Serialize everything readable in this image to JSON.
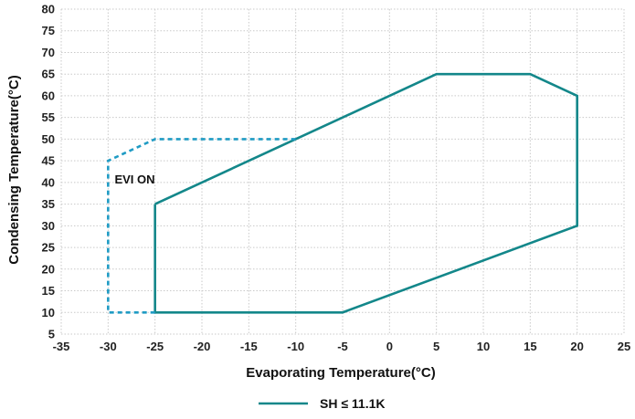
{
  "chart_data": {
    "type": "line",
    "xlabel": "Evaporating Temperature(°C)",
    "ylabel": "Condensing Temperature(°C)",
    "xlim": [
      -35,
      25
    ],
    "ylim": [
      5,
      80
    ],
    "x_ticks": [
      -35,
      -30,
      -25,
      -20,
      -15,
      -10,
      -5,
      0,
      5,
      10,
      15,
      20,
      25
    ],
    "y_ticks": [
      5,
      10,
      15,
      20,
      25,
      30,
      35,
      40,
      45,
      50,
      55,
      60,
      65,
      70,
      75,
      80
    ],
    "grid": true,
    "legend_position": "bottom-center",
    "series": [
      {
        "name": "SH ≤ 11.1K",
        "style": "solid",
        "color": "#13878a",
        "closed": true,
        "points": [
          [
            -25,
            35
          ],
          [
            5,
            65
          ],
          [
            15,
            65
          ],
          [
            20,
            60
          ],
          [
            20,
            30
          ],
          [
            -5,
            10
          ],
          [
            -25,
            10
          ],
          [
            -25,
            35
          ]
        ]
      },
      {
        "style": "dashed",
        "color": "#1f9bc4",
        "closed": false,
        "points": [
          [
            -25,
            10
          ],
          [
            -30,
            10
          ],
          [
            -30,
            45
          ],
          [
            -25,
            50
          ],
          [
            -10,
            50
          ]
        ]
      }
    ],
    "annotations": [
      {
        "text": "EVI ON",
        "x": -29.5,
        "y": 40
      }
    ]
  }
}
